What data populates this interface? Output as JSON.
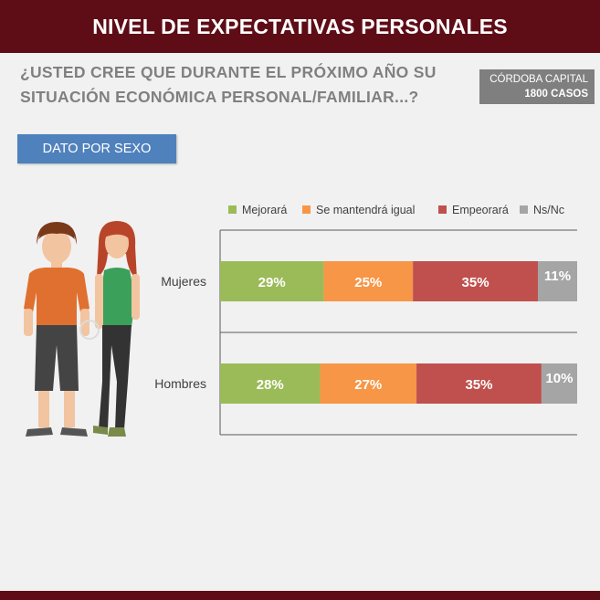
{
  "header": {
    "title": "NIVEL DE EXPECTATIVAS PERSONALES"
  },
  "question": {
    "text": "¿USTED CREE QUE DURANTE EL PRÓXIMO AÑO SU SITUACIÓN ECONÓMICA PERSONAL/FAMILIAR...?"
  },
  "scope": {
    "location": "CÓRDOBA CAPITAL",
    "cases": "1800  CASOS"
  },
  "section": {
    "label": "DATO POR SEXO"
  },
  "colors": {
    "header_bg": "#5e0d17",
    "button_bg": "#4f81bd",
    "scope_bg": "#7f7f7f",
    "mejorara": "#9bbb59",
    "mantendra": "#f79646",
    "empeorara": "#c0504d",
    "nsnc": "#a5a5a5"
  },
  "chart_data": {
    "type": "bar",
    "orientation": "horizontal",
    "stacked": true,
    "categories": [
      "Mujeres",
      "Hombres"
    ],
    "series": [
      {
        "name": "Mejorará",
        "values": [
          29,
          28
        ],
        "labels": [
          "29%",
          "28%"
        ],
        "color": "#9bbb59"
      },
      {
        "name": "Se mantendrá igual",
        "values": [
          25,
          27
        ],
        "labels": [
          "25%",
          "27%"
        ],
        "color": "#f79646"
      },
      {
        "name": "Empeorará",
        "values": [
          35,
          35
        ],
        "labels": [
          "35%",
          "35%"
        ],
        "color": "#c0504d"
      },
      {
        "name": "Ns/Nc",
        "values": [
          11,
          10
        ],
        "labels": [
          "11%",
          "10%"
        ],
        "color": "#a5a5a5"
      }
    ],
    "xlim": [
      0,
      100
    ],
    "legend_position": "top",
    "grid": false
  }
}
